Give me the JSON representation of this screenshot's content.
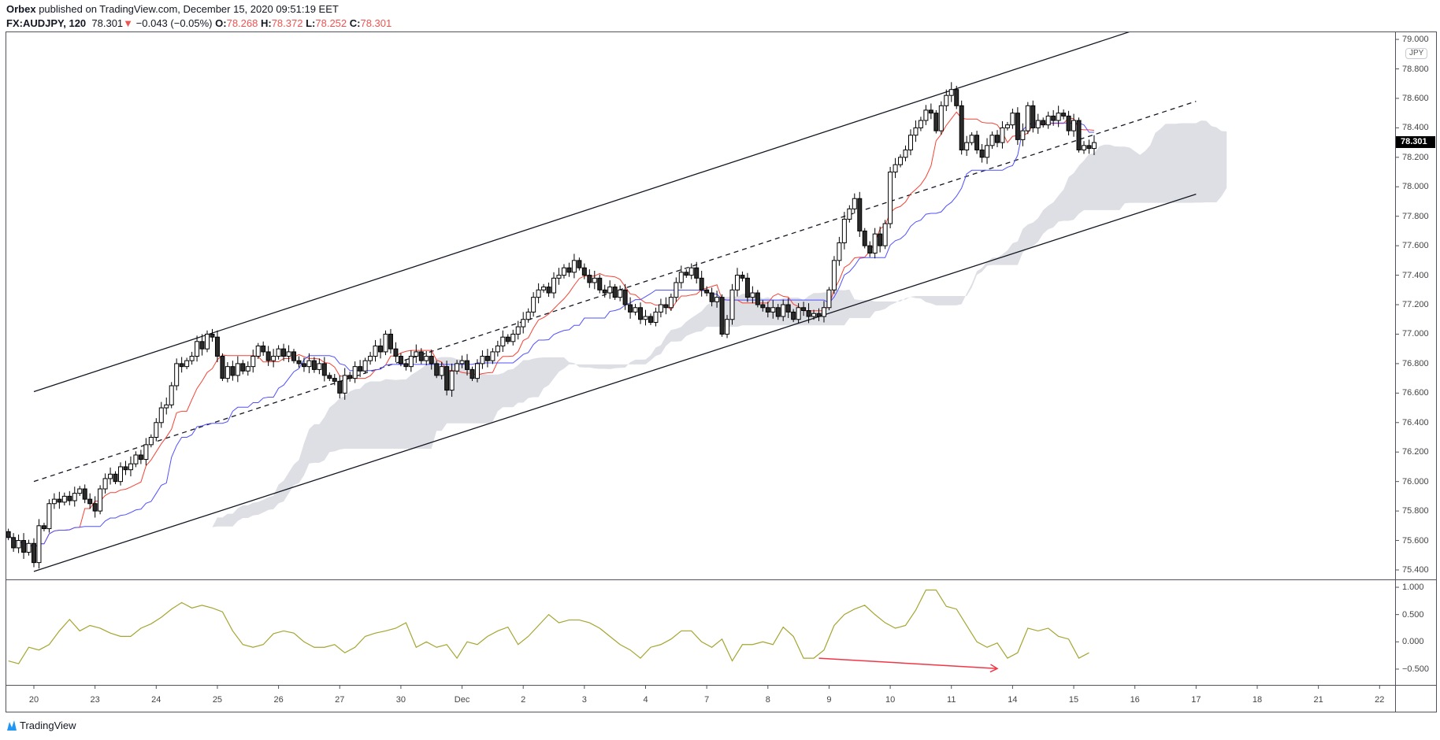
{
  "header": {
    "author": "Orbex",
    "published": "published on TradingView.com, December 15, 2020 09:51:19 EET",
    "symbol": "FX:AUDJPY, 120",
    "last": "78.301",
    "change_icon": "triangle-down-icon",
    "change": "−0.043 (−0.05%)",
    "o_label": "O:",
    "o": "78.268",
    "h_label": "H:",
    "h": "78.372",
    "l_label": "L:",
    "l": "78.252",
    "c_label": "C:",
    "c": "78.301"
  },
  "currency_badge": "JPY",
  "footer": {
    "brand": "TradingView"
  },
  "colors": {
    "up_body": "#ffffff",
    "down_body": "#2b2b2b",
    "tenkan": "#f44336",
    "kijun": "#5050ff",
    "cloud": "#d1d4dc",
    "oscillator": "#a5a531",
    "arrow": "#f23645",
    "change": "#ef5350"
  },
  "chart_data": [
    {
      "type": "candlestick",
      "title": "FX:AUDJPY, 120",
      "indicators": [
        "ichimoku"
      ],
      "ylim": [
        75.33,
        79.02
      ],
      "y_ticks": [
        "79.000",
        "78.800",
        "78.600",
        "78.400",
        "78.200",
        "78.000",
        "77.800",
        "77.600",
        "77.400",
        "77.200",
        "77.000",
        "76.800",
        "76.600",
        "76.400",
        "76.200",
        "76.000",
        "75.800",
        "75.600",
        "75.400"
      ],
      "last_price_label": "78.301",
      "x_ticks": [
        {
          "label": "20",
          "date": "2020-11-20"
        },
        {
          "label": "23",
          "date": "2020-11-23"
        },
        {
          "label": "24",
          "date": "2020-11-24"
        },
        {
          "label": "25",
          "date": "2020-11-25"
        },
        {
          "label": "26",
          "date": "2020-11-26"
        },
        {
          "label": "27",
          "date": "2020-11-27"
        },
        {
          "label": "30",
          "date": "2020-11-30"
        },
        {
          "label": "Dec",
          "date": "2020-12-01"
        },
        {
          "label": "2",
          "date": "2020-12-02"
        },
        {
          "label": "3",
          "date": "2020-12-03"
        },
        {
          "label": "4",
          "date": "2020-12-04"
        },
        {
          "label": "7",
          "date": "2020-12-07"
        },
        {
          "label": "8",
          "date": "2020-12-08"
        },
        {
          "label": "9",
          "date": "2020-12-09"
        },
        {
          "label": "10",
          "date": "2020-12-10"
        },
        {
          "label": "11",
          "date": "2020-12-11"
        },
        {
          "label": "14",
          "date": "2020-12-14"
        },
        {
          "label": "15",
          "date": "2020-12-15"
        },
        {
          "label": "16",
          "date": "2020-12-16"
        },
        {
          "label": "17",
          "date": "2020-12-17"
        },
        {
          "label": "18",
          "date": "2020-12-18"
        },
        {
          "label": "21",
          "date": "2020-12-21"
        },
        {
          "label": "22",
          "date": "2020-12-22"
        }
      ],
      "closes": [
        75.62,
        75.55,
        75.6,
        75.52,
        75.58,
        75.45,
        75.7,
        75.68,
        75.85,
        75.88,
        75.86,
        75.9,
        75.87,
        75.92,
        75.95,
        75.88,
        75.85,
        75.8,
        75.95,
        76.02,
        76.05,
        76.0,
        76.1,
        76.08,
        76.12,
        76.18,
        76.15,
        76.25,
        76.3,
        76.4,
        76.5,
        76.52,
        76.65,
        76.8,
        76.78,
        76.82,
        76.85,
        76.95,
        76.9,
        77.0,
        76.98,
        76.85,
        76.7,
        76.78,
        76.72,
        76.8,
        76.75,
        76.78,
        76.85,
        76.92,
        76.88,
        76.82,
        76.85,
        76.9,
        76.85,
        76.88,
        76.82,
        76.8,
        76.78,
        76.82,
        76.76,
        76.8,
        76.72,
        76.7,
        76.68,
        76.6,
        76.72,
        76.7,
        76.78,
        76.75,
        76.82,
        76.85,
        76.92,
        76.88,
        77.0,
        76.9,
        76.85,
        76.8,
        76.78,
        76.85,
        76.88,
        76.82,
        76.85,
        76.8,
        76.72,
        76.78,
        76.62,
        76.75,
        76.8,
        76.82,
        76.76,
        76.7,
        76.8,
        76.85,
        76.82,
        76.88,
        76.92,
        76.98,
        76.95,
        77.0,
        77.05,
        77.1,
        77.15,
        77.25,
        77.3,
        77.32,
        77.28,
        77.38,
        77.4,
        77.45,
        77.42,
        77.5,
        77.45,
        77.4,
        77.35,
        77.38,
        77.3,
        77.28,
        77.32,
        77.25,
        77.3,
        77.2,
        77.15,
        77.18,
        77.1,
        77.12,
        77.08,
        77.15,
        77.2,
        77.18,
        77.25,
        77.35,
        77.42,
        77.4,
        77.45,
        77.38,
        77.3,
        77.28,
        77.22,
        77.25,
        77.0,
        77.1,
        77.3,
        77.4,
        77.38,
        77.25,
        77.28,
        77.2,
        77.18,
        77.15,
        77.18,
        77.12,
        77.2,
        77.15,
        77.1,
        77.18,
        77.16,
        77.12,
        77.14,
        77.12,
        77.18,
        77.3,
        77.5,
        77.62,
        77.78,
        77.85,
        77.92,
        77.7,
        77.6,
        77.55,
        77.68,
        77.6,
        77.75,
        78.1,
        78.15,
        78.2,
        78.25,
        78.35,
        78.4,
        78.45,
        78.52,
        78.5,
        78.38,
        78.55,
        78.62,
        78.66,
        78.55,
        78.25,
        78.3,
        78.35,
        78.25,
        78.2,
        78.28,
        78.35,
        78.3,
        78.4,
        78.42,
        78.5,
        78.32,
        78.38,
        78.55,
        78.4,
        78.45,
        78.42,
        78.48,
        78.45,
        78.5,
        78.48,
        78.38,
        78.45,
        78.25,
        78.28,
        78.26,
        78.3
      ],
      "trendlines": [
        {
          "style": "solid",
          "from": {
            "date": "2020-11-20",
            "price": 76.61
          },
          "to": {
            "date": "2020-12-17",
            "price": 79.2
          }
        },
        {
          "style": "dashed",
          "from": {
            "date": "2020-11-20",
            "price": 76.0
          },
          "to": {
            "date": "2020-12-17",
            "price": 78.58
          }
        },
        {
          "style": "solid",
          "from": {
            "date": "2020-11-20",
            "price": 75.39
          },
          "to": {
            "date": "2020-12-17",
            "price": 77.95
          }
        }
      ]
    },
    {
      "type": "line",
      "ylim": [
        -0.75,
        1.1
      ],
      "y_ticks": [
        "1.000",
        "0.500",
        "0.000",
        "−0.500"
      ],
      "sample_every_bars": 2,
      "values": [
        -0.35,
        -0.4,
        -0.1,
        -0.15,
        -0.05,
        0.2,
        0.41,
        0.2,
        0.3,
        0.25,
        0.16,
        0.1,
        0.1,
        0.25,
        0.33,
        0.45,
        0.6,
        0.72,
        0.62,
        0.67,
        0.62,
        0.55,
        0.2,
        -0.05,
        -0.1,
        -0.05,
        0.15,
        0.2,
        0.16,
        0.0,
        -0.1,
        -0.1,
        -0.05,
        -0.2,
        -0.1,
        0.1,
        0.16,
        0.2,
        0.25,
        0.35,
        -0.1,
        0.0,
        -0.1,
        -0.05,
        -0.3,
        0.0,
        -0.05,
        0.1,
        0.2,
        0.27,
        -0.05,
        0.1,
        0.3,
        0.5,
        0.35,
        0.4,
        0.4,
        0.35,
        0.25,
        0.1,
        -0.05,
        -0.15,
        -0.3,
        -0.1,
        -0.05,
        0.05,
        0.2,
        0.2,
        0.0,
        -0.1,
        0.05,
        -0.35,
        -0.05,
        -0.05,
        0.0,
        -0.05,
        0.27,
        0.1,
        -0.3,
        -0.3,
        -0.15,
        0.3,
        0.5,
        0.6,
        0.67,
        0.5,
        0.35,
        0.25,
        0.3,
        0.58,
        0.95,
        0.95,
        0.65,
        0.6,
        0.3,
        0.0,
        -0.1,
        -0.02,
        -0.3,
        -0.2,
        0.25,
        0.2,
        0.25,
        0.1,
        0.05,
        -0.3,
        -0.2
      ],
      "annotation_arrow": {
        "from": {
          "date": "2020-12-08",
          "hour": 20,
          "value": -0.3
        },
        "to": {
          "date": "2020-12-11",
          "hour": 18,
          "value": -0.49
        }
      }
    }
  ]
}
